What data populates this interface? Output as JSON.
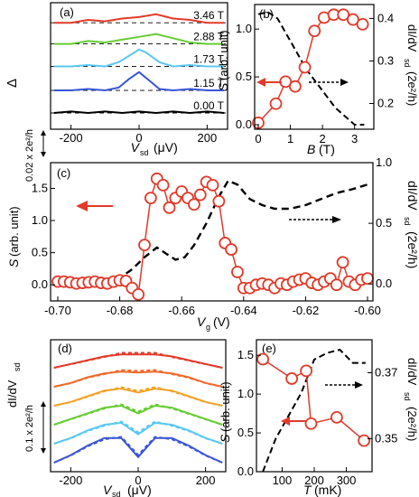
{
  "chart_data": [
    {
      "panel": "(a)",
      "type": "line",
      "xlabel_main": "V",
      "xlabel_sub": "sd",
      "xlabel_unit": "(μV)",
      "ylabel": "Δ",
      "scalebar_label": "0.02 x 2e²/h",
      "xlim": [
        -260,
        260
      ],
      "xticks": [
        "-200",
        "0",
        "200"
      ],
      "series": [
        {
          "name": "0.00 T",
          "color": "#000000",
          "offset": 0.0,
          "x": [
            -250,
            -200,
            -150,
            -100,
            -50,
            0,
            50,
            100,
            150,
            200,
            250
          ],
          "y": [
            0.0,
            0.001,
            0.0,
            0.001,
            0.0,
            0.001,
            0.0,
            0.001,
            0.0,
            0.001,
            0.0
          ]
        },
        {
          "name": "1.15 T",
          "color": "#3a55d9",
          "offset": 0.016,
          "x": [
            -250,
            -200,
            -150,
            -100,
            -60,
            -30,
            0,
            30,
            60,
            100,
            150,
            200,
            250
          ],
          "y": [
            0.0,
            0.0,
            0.001,
            0.0,
            0.002,
            0.008,
            0.013,
            0.007,
            0.001,
            0.0,
            0.001,
            0.0,
            0.0
          ]
        },
        {
          "name": "1.73 T",
          "color": "#5bc8f2",
          "offset": 0.033,
          "x": [
            -250,
            -200,
            -150,
            -100,
            -60,
            -20,
            0,
            20,
            60,
            100,
            150,
            200,
            250
          ],
          "y": [
            0.0,
            0.0,
            0.001,
            0.0,
            0.003,
            0.009,
            0.012,
            0.01,
            0.003,
            0.0,
            0.001,
            0.0,
            0.0
          ]
        },
        {
          "name": "2.88 T",
          "color": "#66cc33",
          "offset": 0.049,
          "x": [
            -250,
            -200,
            -150,
            -100,
            -50,
            0,
            50,
            100,
            150,
            200,
            250
          ],
          "y": [
            0.0,
            0.0,
            0.002,
            0.001,
            0.003,
            0.005,
            0.007,
            0.004,
            0.001,
            0.0,
            0.0
          ]
        },
        {
          "name": "3.46 T",
          "color": "#e23a2a",
          "offset": 0.064,
          "x": [
            -250,
            -200,
            -150,
            -100,
            -50,
            0,
            50,
            100,
            150,
            200,
            250
          ],
          "y": [
            0.0,
            0.0,
            0.002,
            0.001,
            0.003,
            0.004,
            0.006,
            0.003,
            0.002,
            0.0,
            0.0
          ]
        }
      ]
    },
    {
      "panel": "(b)",
      "type": "scatter+line",
      "xlabel": "B",
      "xlabel_unit": "(T)",
      "ylabel_left": "S",
      "ylabel_left_unit": "(arb. unit)",
      "ylabel_right": "dI/dV",
      "ylabel_right_sub": "sd",
      "ylabel_right_unit": "(2e²/h)",
      "xlim": [
        0,
        3.6
      ],
      "ylim_left": [
        0,
        1.2
      ],
      "ylim_right": [
        0.15,
        0.42
      ],
      "xticks": [
        "0",
        "1",
        "2",
        "3"
      ],
      "yticks_left": [
        "0.0",
        "0.5",
        "1.0"
      ],
      "yticks_right": [
        "0.2",
        "0.3",
        "0.4"
      ],
      "series": [
        {
          "name": "S",
          "axis": "left",
          "style": "markers",
          "color": "#e23a2a",
          "x": [
            0.0,
            0.55,
            0.85,
            1.15,
            1.45,
            1.75,
            2.05,
            2.35,
            2.65,
            2.95,
            3.25
          ],
          "y": [
            0.02,
            0.22,
            0.45,
            0.4,
            0.6,
            0.98,
            1.12,
            1.15,
            1.15,
            1.1,
            1.05
          ]
        },
        {
          "name": "dI/dV",
          "axis": "right",
          "style": "dashed",
          "color": "#000000",
          "x": [
            0.0,
            0.3,
            0.6,
            0.9,
            1.2,
            1.5,
            1.8,
            2.1,
            2.4,
            2.7,
            3.0,
            3.3
          ],
          "y": [
            0.41,
            0.415,
            0.4,
            0.36,
            0.32,
            0.28,
            0.25,
            0.22,
            0.19,
            0.17,
            0.15,
            0.15
          ]
        }
      ]
    },
    {
      "panel": "(c)",
      "type": "scatter+line",
      "xlabel": "V",
      "xlabel_sub": "g",
      "xlabel_unit": "(V)",
      "ylabel_left": "S",
      "ylabel_left_unit": "(arb. unit)",
      "ylabel_right": "dI/dV",
      "ylabel_right_sub": "sd",
      "ylabel_right_unit": "(2e²/h)",
      "xlim": [
        -0.7,
        -0.6
      ],
      "ylim_left": [
        -0.25,
        1.9
      ],
      "ylim_right": [
        -0.14,
        1.0
      ],
      "xticks": [
        "-0.70",
        "-0.68",
        "-0.66",
        "-0.64",
        "-0.62",
        "-0.60"
      ],
      "yticks_left": [
        "0.0",
        "0.5",
        "1.0",
        "1.5"
      ],
      "yticks_right": [
        "0.0",
        "0.5",
        "1.0"
      ],
      "series": [
        {
          "name": "S",
          "axis": "left",
          "style": "markers",
          "color": "#e23a2a",
          "x": [
            -0.7,
            -0.698,
            -0.696,
            -0.694,
            -0.692,
            -0.69,
            -0.688,
            -0.686,
            -0.684,
            -0.682,
            -0.68,
            -0.678,
            -0.676,
            -0.674,
            -0.672,
            -0.67,
            -0.668,
            -0.666,
            -0.664,
            -0.662,
            -0.66,
            -0.658,
            -0.656,
            -0.654,
            -0.652,
            -0.65,
            -0.648,
            -0.646,
            -0.644,
            -0.642,
            -0.64,
            -0.638,
            -0.636,
            -0.634,
            -0.632,
            -0.63,
            -0.628,
            -0.626,
            -0.624,
            -0.622,
            -0.62,
            -0.618,
            -0.616,
            -0.614,
            -0.612,
            -0.61,
            -0.608,
            -0.606,
            -0.604,
            -0.602,
            -0.6
          ],
          "y": [
            0.05,
            0.05,
            0.04,
            0.02,
            0.03,
            0.04,
            0.05,
            0.03,
            0.02,
            0.05,
            0.07,
            0.06,
            -0.05,
            -0.15,
            0.62,
            1.35,
            1.65,
            1.55,
            1.2,
            1.35,
            1.45,
            1.35,
            1.25,
            1.4,
            1.6,
            1.55,
            1.3,
            0.65,
            0.55,
            0.2,
            -0.05,
            -0.05,
            0.0,
            0.02,
            0.0,
            -0.05,
            0.02,
            0.0,
            0.05,
            0.08,
            0.1,
            0.03,
            0.0,
            0.05,
            0.1,
            0.0,
            0.35,
            0.05,
            0.0,
            0.08,
            0.1
          ]
        },
        {
          "name": "dI/dV",
          "axis": "right",
          "style": "dashed",
          "color": "#000000",
          "x": [
            -0.7,
            -0.69,
            -0.685,
            -0.68,
            -0.676,
            -0.672,
            -0.668,
            -0.665,
            -0.662,
            -0.659,
            -0.656,
            -0.652,
            -0.648,
            -0.645,
            -0.642,
            -0.638,
            -0.634,
            -0.63,
            -0.625,
            -0.62,
            -0.615,
            -0.61,
            -0.605,
            -0.6
          ],
          "y": [
            0.0,
            0.0,
            0.01,
            0.05,
            0.12,
            0.22,
            0.3,
            0.25,
            0.2,
            0.22,
            0.32,
            0.5,
            0.72,
            0.85,
            0.82,
            0.7,
            0.65,
            0.62,
            0.62,
            0.65,
            0.7,
            0.75,
            0.78,
            0.82
          ]
        }
      ]
    },
    {
      "panel": "(d)",
      "type": "line",
      "xlabel": "V",
      "xlabel_sub": "sd",
      "xlabel_unit": "(μV)",
      "ylabel": "dI/dV",
      "ylabel_sub": "sd",
      "scalebar_label": "0.1 x 2e²/h",
      "xlim": [
        -260,
        260
      ],
      "xticks": [
        "-200",
        "0",
        "200"
      ],
      "series": [
        {
          "color": "#e23a2a",
          "offset": 0.5,
          "x": [
            -250,
            -200,
            -150,
            -100,
            -50,
            0,
            50,
            100,
            150,
            200,
            250
          ],
          "y": [
            0.0,
            0.02,
            0.04,
            0.06,
            0.07,
            0.07,
            0.07,
            0.06,
            0.04,
            0.02,
            0.0
          ]
        },
        {
          "color": "#f06a2a",
          "offset": 0.4,
          "x": [
            -250,
            -200,
            -150,
            -100,
            -50,
            0,
            50,
            100,
            150,
            200,
            250
          ],
          "y": [
            0.0,
            0.02,
            0.05,
            0.07,
            0.08,
            0.075,
            0.08,
            0.07,
            0.05,
            0.02,
            0.0
          ]
        },
        {
          "color": "#f2a32a",
          "offset": 0.3,
          "x": [
            -250,
            -200,
            -150,
            -100,
            -50,
            0,
            50,
            100,
            150,
            200,
            250
          ],
          "y": [
            0.0,
            0.02,
            0.05,
            0.08,
            0.09,
            0.07,
            0.09,
            0.08,
            0.05,
            0.02,
            0.0
          ]
        },
        {
          "color": "#66cc33",
          "offset": 0.2,
          "x": [
            -250,
            -200,
            -150,
            -100,
            -50,
            0,
            50,
            100,
            150,
            200,
            250
          ],
          "y": [
            0.0,
            0.03,
            0.06,
            0.09,
            0.1,
            0.06,
            0.1,
            0.09,
            0.06,
            0.03,
            0.0
          ]
        },
        {
          "color": "#5bc8f2",
          "offset": 0.1,
          "x": [
            -250,
            -200,
            -150,
            -100,
            -50,
            0,
            50,
            100,
            150,
            200,
            250
          ],
          "y": [
            0.0,
            0.03,
            0.07,
            0.1,
            0.11,
            0.05,
            0.11,
            0.1,
            0.07,
            0.03,
            0.0
          ]
        },
        {
          "color": "#3a55d9",
          "offset": 0.0,
          "x": [
            -250,
            -200,
            -150,
            -100,
            -50,
            0,
            50,
            100,
            150,
            200,
            250
          ],
          "y": [
            0.0,
            0.04,
            0.09,
            0.13,
            0.13,
            0.03,
            0.13,
            0.13,
            0.09,
            0.04,
            0.0
          ]
        }
      ]
    },
    {
      "panel": "(e)",
      "type": "scatter+line",
      "xlabel": "T",
      "xlabel_unit": "(mK)",
      "ylabel_left": "S",
      "ylabel_left_unit": "(arb. unit)",
      "ylabel_right": "dI/dV",
      "ylabel_right_sub": "sd",
      "ylabel_right_unit": "(2e²/h)",
      "xlim": [
        20,
        380
      ],
      "ylim_left": [
        0,
        1.7
      ],
      "ylim_right": [
        0.34,
        0.38
      ],
      "xticks": [
        "100",
        "200",
        "300"
      ],
      "yticks_left": [
        "0.0",
        "0.5",
        "1.0",
        "1.5"
      ],
      "yticks_right": [
        "0.35",
        "0.37"
      ],
      "series": [
        {
          "name": "S",
          "axis": "left",
          "style": "markers",
          "color": "#e23a2a",
          "x": [
            40,
            130,
            175,
            190,
            270,
            355
          ],
          "y": [
            1.45,
            1.2,
            1.3,
            0.62,
            0.7,
            0.4
          ]
        },
        {
          "name": "dI/dV",
          "axis": "right",
          "style": "dashed",
          "color": "#000000",
          "x": [
            40,
            80,
            120,
            160,
            200,
            240,
            280,
            320,
            360
          ],
          "y": [
            0.34,
            0.35,
            0.357,
            0.364,
            0.374,
            0.376,
            0.377,
            0.373,
            0.373
          ]
        }
      ]
    }
  ]
}
